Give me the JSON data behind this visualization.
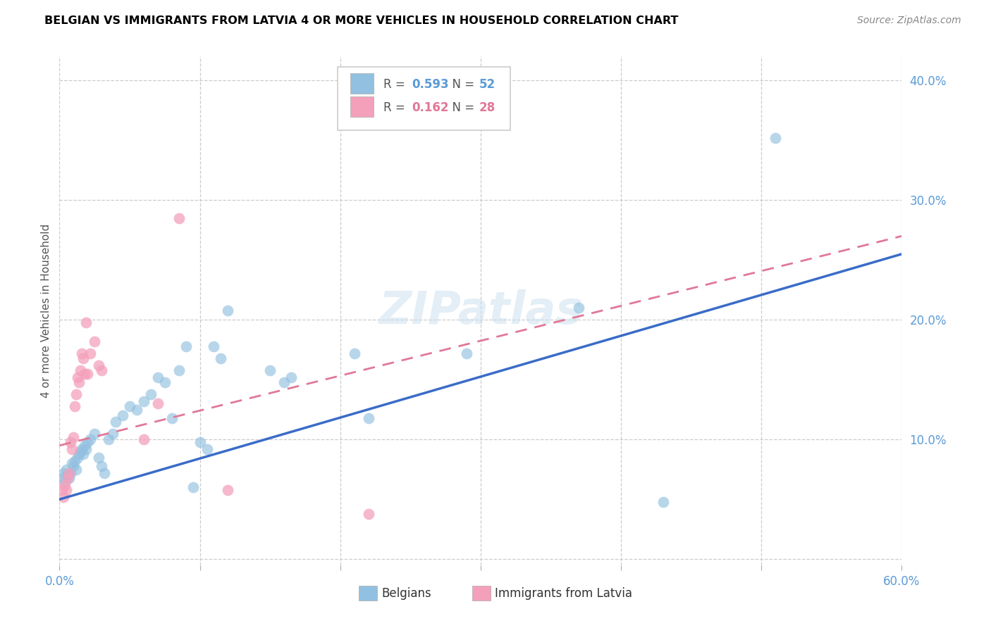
{
  "title": "BELGIAN VS IMMIGRANTS FROM LATVIA 4 OR MORE VEHICLES IN HOUSEHOLD CORRELATION CHART",
  "source": "Source: ZipAtlas.com",
  "ylabel": "4 or more Vehicles in Household",
  "xlim": [
    0.0,
    0.6
  ],
  "ylim": [
    -0.005,
    0.42
  ],
  "legend_r_values": [
    "0.593",
    "0.162"
  ],
  "legend_n_values": [
    "52",
    "28"
  ],
  "blue_color": "#92c0e0",
  "pink_color": "#f4a0bb",
  "trend_blue": "#3a6cc8",
  "trend_pink": "#e07898",
  "watermark": "ZIPatlas",
  "blue_scatter": [
    [
      0.002,
      0.068
    ],
    [
      0.003,
      0.072
    ],
    [
      0.004,
      0.065
    ],
    [
      0.005,
      0.075
    ],
    [
      0.006,
      0.07
    ],
    [
      0.007,
      0.068
    ],
    [
      0.008,
      0.072
    ],
    [
      0.009,
      0.08
    ],
    [
      0.01,
      0.078
    ],
    [
      0.011,
      0.082
    ],
    [
      0.012,
      0.075
    ],
    [
      0.013,
      0.085
    ],
    [
      0.014,
      0.088
    ],
    [
      0.015,
      0.09
    ],
    [
      0.016,
      0.092
    ],
    [
      0.017,
      0.088
    ],
    [
      0.018,
      0.095
    ],
    [
      0.019,
      0.092
    ],
    [
      0.02,
      0.098
    ],
    [
      0.022,
      0.1
    ],
    [
      0.025,
      0.105
    ],
    [
      0.028,
      0.085
    ],
    [
      0.03,
      0.078
    ],
    [
      0.032,
      0.072
    ],
    [
      0.035,
      0.1
    ],
    [
      0.038,
      0.105
    ],
    [
      0.04,
      0.115
    ],
    [
      0.045,
      0.12
    ],
    [
      0.05,
      0.128
    ],
    [
      0.055,
      0.125
    ],
    [
      0.06,
      0.132
    ],
    [
      0.065,
      0.138
    ],
    [
      0.07,
      0.152
    ],
    [
      0.075,
      0.148
    ],
    [
      0.08,
      0.118
    ],
    [
      0.085,
      0.158
    ],
    [
      0.09,
      0.178
    ],
    [
      0.095,
      0.06
    ],
    [
      0.1,
      0.098
    ],
    [
      0.105,
      0.092
    ],
    [
      0.11,
      0.178
    ],
    [
      0.115,
      0.168
    ],
    [
      0.12,
      0.208
    ],
    [
      0.15,
      0.158
    ],
    [
      0.16,
      0.148
    ],
    [
      0.165,
      0.152
    ],
    [
      0.21,
      0.172
    ],
    [
      0.22,
      0.118
    ],
    [
      0.29,
      0.172
    ],
    [
      0.37,
      0.21
    ],
    [
      0.43,
      0.048
    ],
    [
      0.51,
      0.352
    ]
  ],
  "pink_scatter": [
    [
      0.002,
      0.058
    ],
    [
      0.003,
      0.052
    ],
    [
      0.004,
      0.062
    ],
    [
      0.005,
      0.058
    ],
    [
      0.006,
      0.068
    ],
    [
      0.007,
      0.072
    ],
    [
      0.008,
      0.098
    ],
    [
      0.009,
      0.092
    ],
    [
      0.01,
      0.102
    ],
    [
      0.011,
      0.128
    ],
    [
      0.012,
      0.138
    ],
    [
      0.013,
      0.152
    ],
    [
      0.014,
      0.148
    ],
    [
      0.015,
      0.158
    ],
    [
      0.016,
      0.172
    ],
    [
      0.017,
      0.168
    ],
    [
      0.018,
      0.155
    ],
    [
      0.019,
      0.198
    ],
    [
      0.02,
      0.155
    ],
    [
      0.022,
      0.172
    ],
    [
      0.025,
      0.182
    ],
    [
      0.028,
      0.162
    ],
    [
      0.03,
      0.158
    ],
    [
      0.06,
      0.1
    ],
    [
      0.07,
      0.13
    ],
    [
      0.085,
      0.285
    ],
    [
      0.12,
      0.058
    ],
    [
      0.22,
      0.038
    ]
  ],
  "blue_line_x": [
    0.0,
    0.6
  ],
  "blue_line_y": [
    0.05,
    0.255
  ],
  "pink_line_x": [
    0.0,
    0.14
  ],
  "pink_line_y": [
    0.092,
    0.158
  ]
}
